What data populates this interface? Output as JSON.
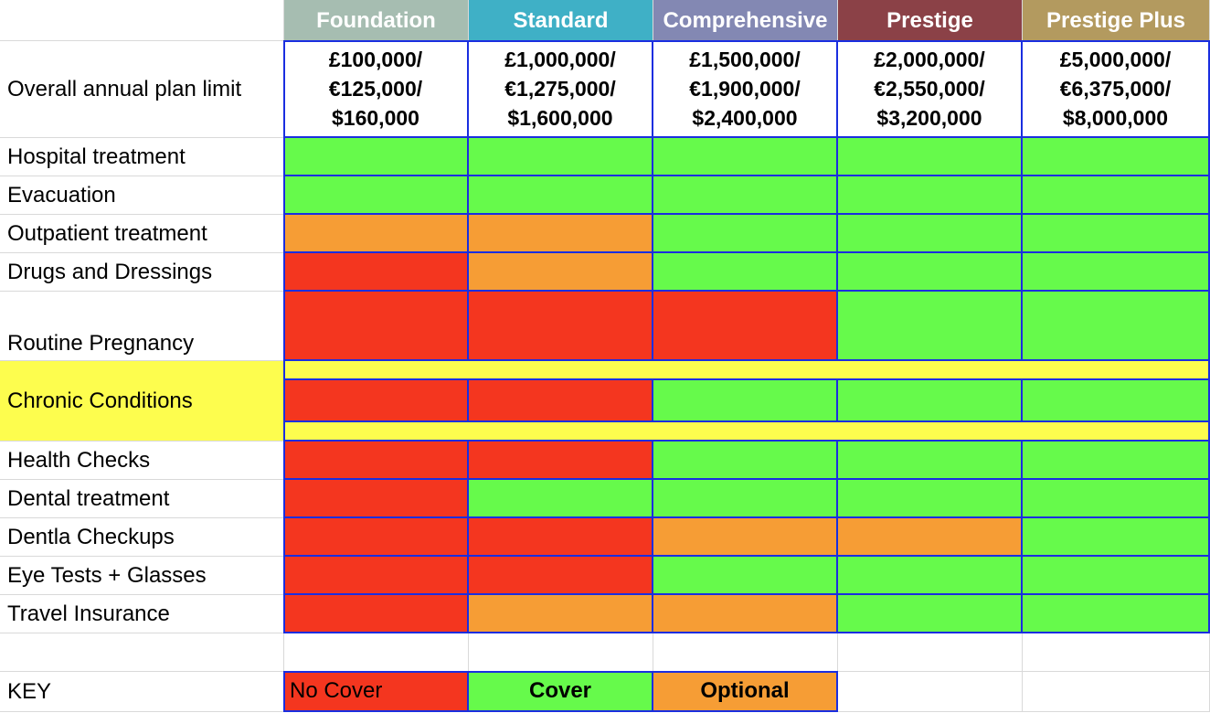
{
  "colors": {
    "no_cover": "#f4361f",
    "cover": "#66fa4b",
    "optional": "#f69d35",
    "highlight": "#fdfd4e",
    "grid_border": "#1a2ee0"
  },
  "plans": [
    {
      "name": "Foundation",
      "color": "#a6bdb1"
    },
    {
      "name": "Standard",
      "color": "#3fb0c6"
    },
    {
      "name": "Comprehensive",
      "color": "#8388b3"
    },
    {
      "name": "Prestige",
      "color": "#8b4147"
    },
    {
      "name": "Prestige Plus",
      "color": "#b39a5f"
    }
  ],
  "limit_row": {
    "label": "Overall annual plan limit",
    "values": [
      "£100,000/\n€125,000/\n$160,000",
      "£1,000,000/\n€1,275,000/\n$1,600,000",
      "£1,500,000/\n€1,900,000/\n$2,400,000",
      "£2,000,000/\n€2,550,000/\n$3,200,000",
      "£5,000,000/\n€6,375,000/\n$8,000,000"
    ]
  },
  "benefit_rows": [
    {
      "label": "Hospital treatment",
      "cells": [
        "cover",
        "cover",
        "cover",
        "cover",
        "cover"
      ]
    },
    {
      "label": "Evacuation",
      "cells": [
        "cover",
        "cover",
        "cover",
        "cover",
        "cover"
      ]
    },
    {
      "label": "Outpatient treatment",
      "cells": [
        "optional",
        "optional",
        "cover",
        "cover",
        "cover"
      ]
    },
    {
      "label": "Drugs and Dressings",
      "cells": [
        "no_cover",
        "optional",
        "cover",
        "cover",
        "cover"
      ]
    },
    {
      "label": "Routine Pregnancy",
      "cells": [
        "no_cover",
        "no_cover",
        "no_cover",
        "cover",
        "cover"
      ]
    },
    {
      "label": "Chronic Conditions",
      "highlighted": true,
      "cells": [
        "no_cover",
        "no_cover",
        "cover",
        "cover",
        "cover"
      ]
    },
    {
      "label": "Health Checks",
      "cells": [
        "no_cover",
        "no_cover",
        "cover",
        "cover",
        "cover"
      ]
    },
    {
      "label": "Dental treatment",
      "cells": [
        "no_cover",
        "cover",
        "cover",
        "cover",
        "cover"
      ]
    },
    {
      "label": "Dentla Checkups",
      "cells": [
        "no_cover",
        "no_cover",
        "optional",
        "optional",
        "cover"
      ]
    },
    {
      "label": "Eye Tests + Glasses",
      "cells": [
        "no_cover",
        "no_cover",
        "cover",
        "cover",
        "cover"
      ]
    },
    {
      "label": "Travel Insurance",
      "cells": [
        "no_cover",
        "optional",
        "optional",
        "cover",
        "cover"
      ]
    }
  ],
  "key": {
    "label": "KEY",
    "items": [
      {
        "text": "No Cover",
        "status": "no_cover"
      },
      {
        "text": "Cover",
        "status": "cover"
      },
      {
        "text": "Optional",
        "status": "optional"
      }
    ]
  }
}
